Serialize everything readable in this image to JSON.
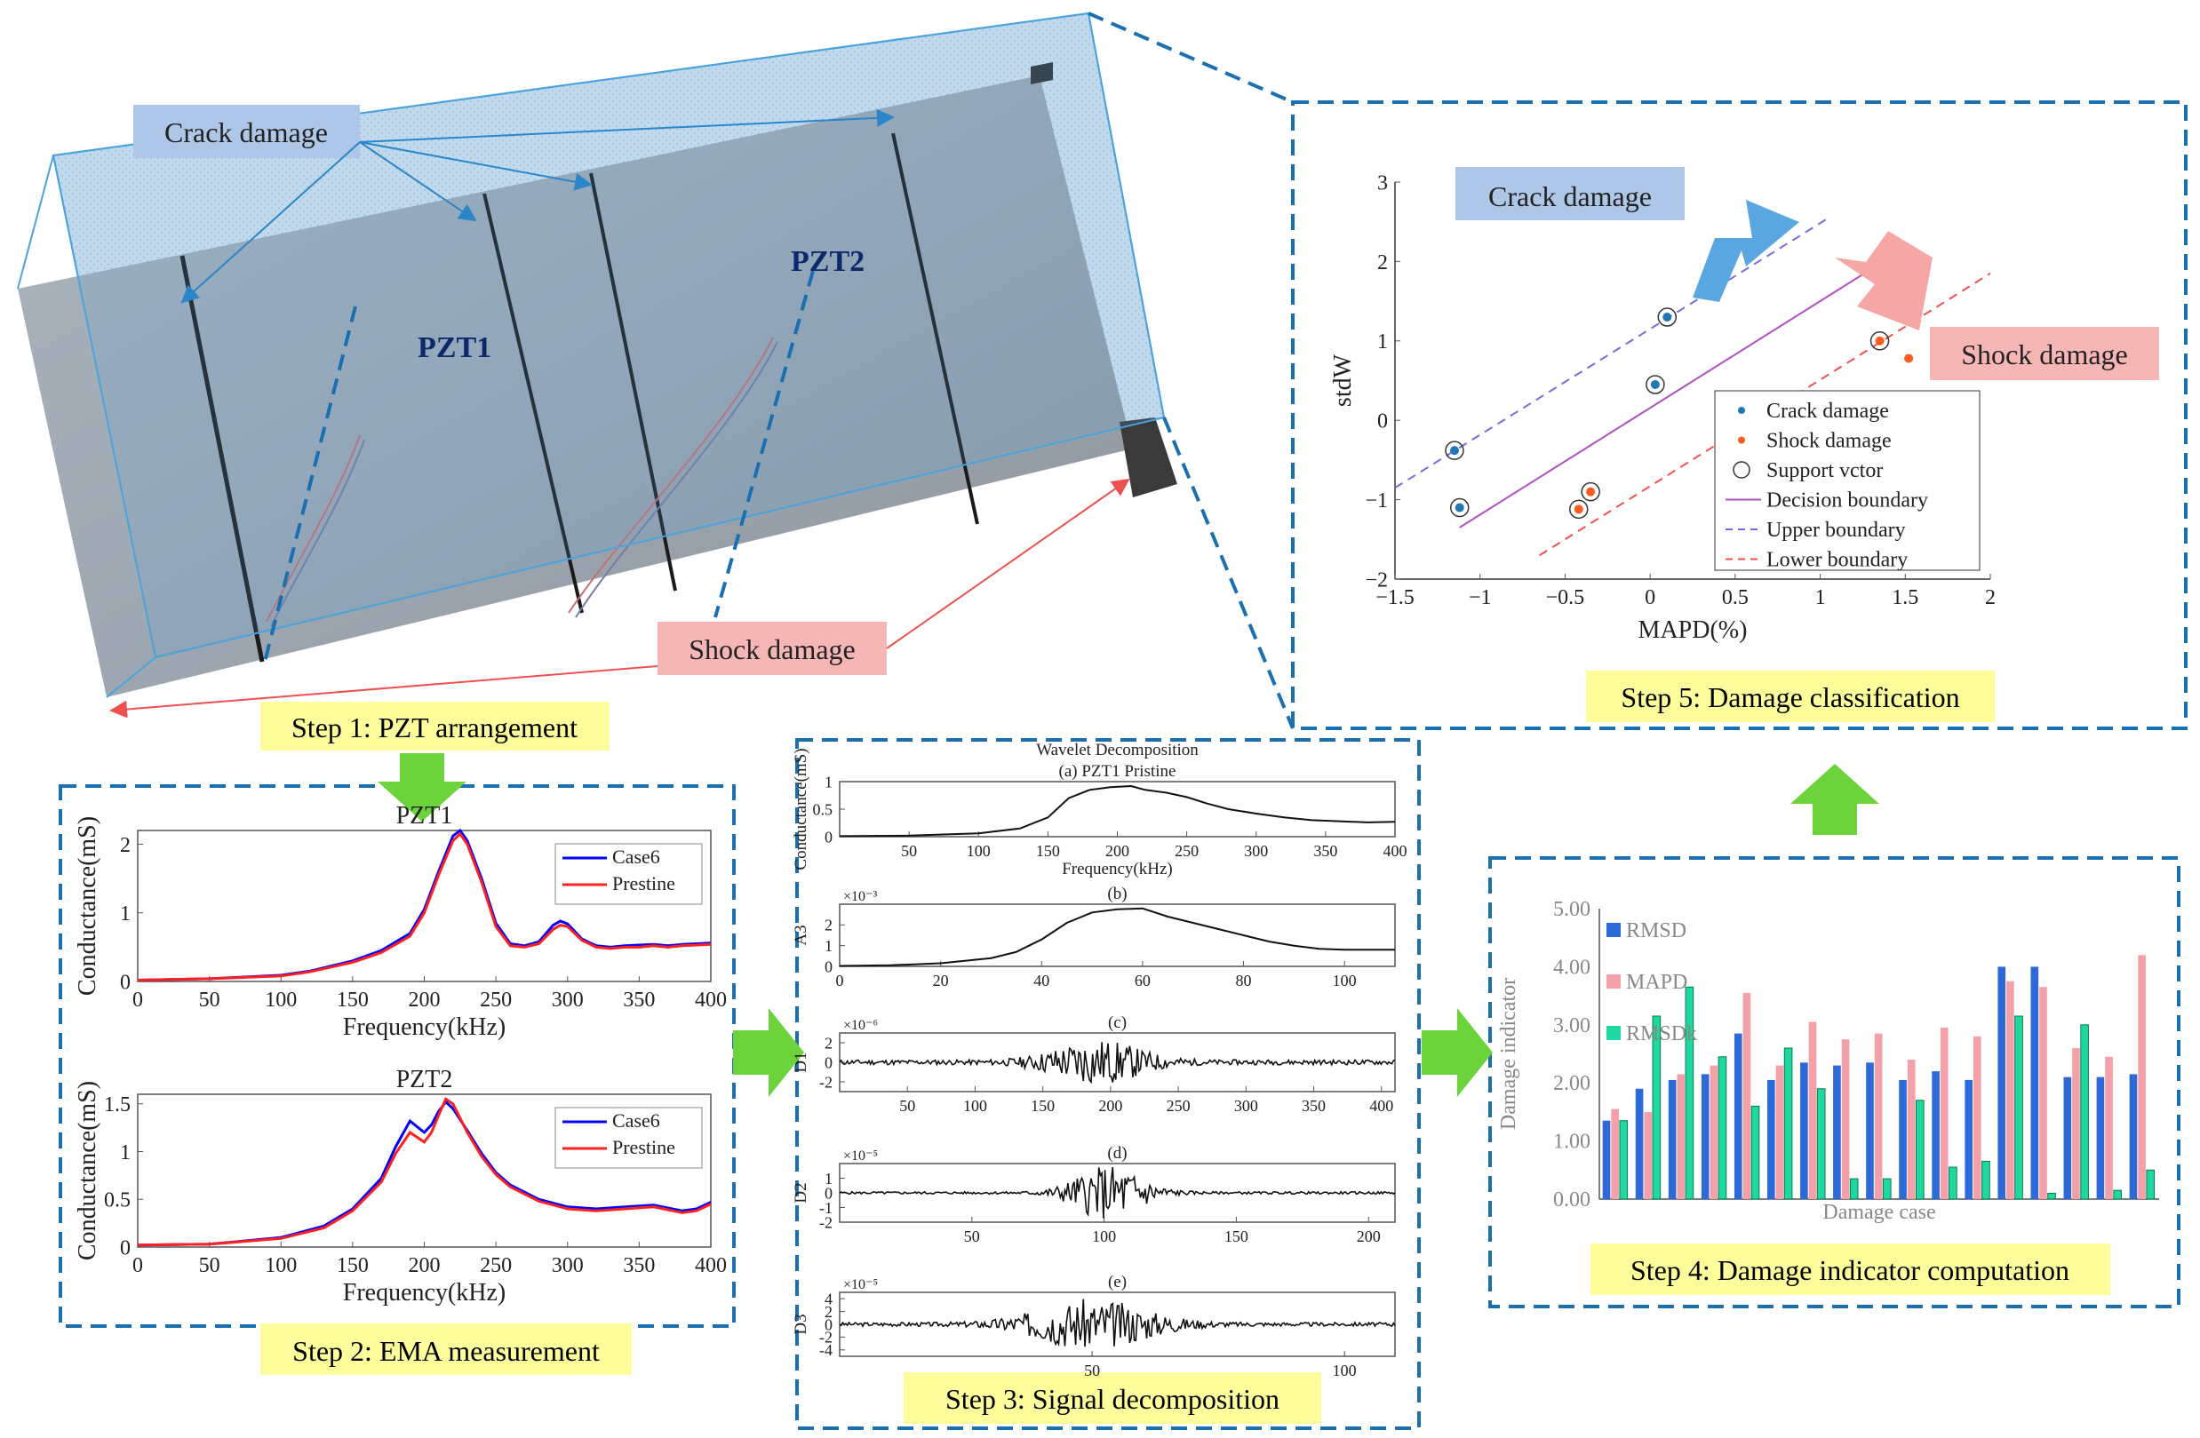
{
  "photo": {
    "crack_label": "Crack damage",
    "shock_label": "Shock damage",
    "pzt1_label": "PZT1",
    "pzt2_label": "PZT2"
  },
  "steps": {
    "step1": "Step 1: PZT arrangement",
    "step2": "Step 2: EMA measurement",
    "step3": "Step 3: Signal decomposition",
    "step4": "Step 4: Damage indicator computation",
    "step5": "Step 5: Damage classification"
  },
  "colors": {
    "case6": "#0000ff",
    "prestine": "#ff2020",
    "rmsd": "#2d6ad8",
    "mapd": "#f4a0a8",
    "rmsdk": "#1fd8a0",
    "crack": "#1f77b4",
    "shock": "#ff5a1f",
    "dash_box": "#1a6fb0",
    "step_bg": "#fdfd9c",
    "arrow": "#6cd43a"
  },
  "chart_data": [
    {
      "type": "line",
      "title": "PZT1",
      "xlabel": "Frequency(kHz)",
      "ylabel": "Conductance(mS)",
      "xlim": [
        0,
        400
      ],
      "ylim": [
        0,
        2.2
      ],
      "xticks": [
        "0",
        "50",
        "100",
        "150",
        "200",
        "250",
        "300",
        "350",
        "400"
      ],
      "yticks": [
        "0",
        "1",
        "2"
      ],
      "x": [
        0,
        50,
        100,
        120,
        150,
        170,
        190,
        200,
        210,
        220,
        225,
        230,
        240,
        250,
        260,
        270,
        280,
        290,
        295,
        300,
        310,
        320,
        330,
        340,
        350,
        360,
        370,
        380,
        390,
        400
      ],
      "series": [
        {
          "name": "Case6",
          "values": [
            0.02,
            0.04,
            0.09,
            0.15,
            0.3,
            0.45,
            0.7,
            1.05,
            1.6,
            2.12,
            2.2,
            2.05,
            1.5,
            0.85,
            0.55,
            0.52,
            0.58,
            0.82,
            0.88,
            0.84,
            0.62,
            0.52,
            0.5,
            0.52,
            0.53,
            0.54,
            0.52,
            0.54,
            0.55,
            0.56
          ]
        },
        {
          "name": "Prestine",
          "values": [
            0.02,
            0.04,
            0.08,
            0.14,
            0.28,
            0.42,
            0.66,
            1.0,
            1.55,
            2.05,
            2.15,
            2.0,
            1.45,
            0.8,
            0.52,
            0.5,
            0.55,
            0.76,
            0.82,
            0.8,
            0.6,
            0.5,
            0.48,
            0.5,
            0.5,
            0.52,
            0.5,
            0.52,
            0.53,
            0.54
          ]
        }
      ]
    },
    {
      "type": "line",
      "title": "PZT2",
      "xlabel": "Frequency(kHz)",
      "ylabel": "Conductance(mS)",
      "xlim": [
        0,
        400
      ],
      "ylim": [
        0,
        1.6
      ],
      "xticks": [
        "0",
        "50",
        "100",
        "150",
        "200",
        "250",
        "300",
        "350",
        "400"
      ],
      "yticks": [
        "0",
        "0.5",
        "1",
        "1.5"
      ],
      "x": [
        0,
        50,
        100,
        130,
        150,
        170,
        180,
        190,
        200,
        205,
        210,
        215,
        220,
        230,
        240,
        250,
        260,
        280,
        300,
        320,
        340,
        360,
        380,
        390,
        400
      ],
      "series": [
        {
          "name": "Case6",
          "values": [
            0.02,
            0.03,
            0.1,
            0.22,
            0.4,
            0.72,
            1.05,
            1.32,
            1.2,
            1.28,
            1.42,
            1.52,
            1.45,
            1.22,
            0.98,
            0.78,
            0.65,
            0.5,
            0.42,
            0.4,
            0.42,
            0.44,
            0.38,
            0.4,
            0.47
          ]
        },
        {
          "name": "Prestine",
          "values": [
            0.02,
            0.03,
            0.09,
            0.2,
            0.38,
            0.68,
            0.98,
            1.2,
            1.1,
            1.2,
            1.38,
            1.55,
            1.5,
            1.2,
            0.95,
            0.76,
            0.63,
            0.48,
            0.4,
            0.38,
            0.4,
            0.42,
            0.36,
            0.38,
            0.45
          ]
        }
      ]
    },
    {
      "type": "line",
      "title": "Wavelet Decomposition",
      "subtitle": "(a)  PZT1  Pristine",
      "xlabel": "Frequency(kHz)",
      "ylabel": "Conductance(mS)",
      "xlim": [
        0,
        400
      ],
      "ylim": [
        0,
        1
      ],
      "xticks": [
        "50",
        "100",
        "150",
        "200",
        "250",
        "300",
        "350",
        "400"
      ],
      "yticks": [
        "0",
        "0.5",
        "1"
      ],
      "x": [
        0,
        50,
        100,
        130,
        150,
        165,
        180,
        195,
        210,
        220,
        235,
        250,
        265,
        280,
        300,
        320,
        340,
        360,
        380,
        400
      ],
      "values": [
        0.01,
        0.02,
        0.06,
        0.15,
        0.35,
        0.7,
        0.85,
        0.9,
        0.92,
        0.85,
        0.8,
        0.72,
        0.6,
        0.5,
        0.42,
        0.35,
        0.3,
        0.28,
        0.26,
        0.27
      ]
    },
    {
      "type": "line",
      "subtitle": "(b)",
      "ylabel": "A3",
      "exponent": "×10⁻³",
      "xlim": [
        0,
        110
      ],
      "ylim": [
        0,
        3
      ],
      "xticks": [
        "0",
        "20",
        "40",
        "60",
        "80",
        "100"
      ],
      "yticks": [
        "0",
        "1",
        "2"
      ],
      "x": [
        0,
        10,
        20,
        30,
        35,
        40,
        45,
        50,
        55,
        60,
        65,
        70,
        75,
        80,
        85,
        90,
        95,
        100,
        110
      ],
      "values": [
        0.02,
        0.05,
        0.15,
        0.4,
        0.7,
        1.3,
        2.1,
        2.6,
        2.75,
        2.8,
        2.4,
        2.1,
        1.8,
        1.5,
        1.2,
        1.0,
        0.85,
        0.8,
        0.8
      ]
    },
    {
      "type": "line",
      "subtitle": "(c)",
      "ylabel": "D1",
      "exponent": "×10⁻⁶",
      "xlim": [
        0,
        410
      ],
      "ylim": [
        -3,
        3
      ],
      "xticks": [
        "50",
        "100",
        "150",
        "200",
        "250",
        "300",
        "350",
        "400"
      ],
      "yticks": [
        "-2",
        "0",
        "2"
      ],
      "noise": {
        "base": 0.25,
        "peak": 2.4,
        "center": 190,
        "width": 40,
        "seed": 11
      }
    },
    {
      "type": "line",
      "subtitle": "(d)",
      "ylabel": "D2",
      "exponent": "×10⁻⁵",
      "xlim": [
        0,
        210
      ],
      "ylim": [
        -2,
        2
      ],
      "xticks": [
        "50",
        "100",
        "150",
        "200"
      ],
      "yticks": [
        "-2",
        "-1",
        "0",
        "1"
      ],
      "noise": {
        "base": 0.08,
        "peak": 1.9,
        "center": 102,
        "width": 16,
        "seed": 5
      }
    },
    {
      "type": "line",
      "subtitle": "(e)",
      "ylabel": "D3",
      "exponent": "×10⁻⁵",
      "xlim": [
        0,
        110
      ],
      "ylim": [
        -5,
        5
      ],
      "xticks": [
        "50",
        "100"
      ],
      "yticks": [
        "-4",
        "-2",
        "0",
        "2",
        "4"
      ],
      "noise": {
        "base": 0.3,
        "peak": 4.0,
        "center": 50,
        "width": 14,
        "seed": 3
      }
    },
    {
      "type": "bar",
      "xlabel": "Damage case",
      "ylabel": "Damage indicator",
      "ylim": [
        0,
        5
      ],
      "yticks": [
        "0.00",
        "1.00",
        "2.00",
        "3.00",
        "4.00",
        "5.00"
      ],
      "series": [
        {
          "name": "RMSD",
          "values": [
            1.35,
            1.9,
            2.05,
            2.15,
            2.85,
            2.05,
            2.35,
            2.3,
            2.35,
            2.05,
            2.2,
            2.05,
            4.0,
            4.0,
            2.1,
            2.1,
            2.15
          ]
        },
        {
          "name": "MAPD",
          "values": [
            1.55,
            1.5,
            2.15,
            2.3,
            3.55,
            2.3,
            3.05,
            2.75,
            2.85,
            2.4,
            2.95,
            2.8,
            3.75,
            3.65,
            2.6,
            2.45,
            4.2
          ]
        },
        {
          "name": "RMSDk",
          "values": [
            1.35,
            3.15,
            3.65,
            2.45,
            1.6,
            2.6,
            1.9,
            0.35,
            0.35,
            1.7,
            0.55,
            0.65,
            3.15,
            0.1,
            3.0,
            0.15,
            0.5
          ]
        }
      ]
    },
    {
      "type": "scatter",
      "xlabel": "MAPD(%)",
      "ylabel": "stdW",
      "xlim": [
        -1.5,
        2
      ],
      "ylim": [
        -2,
        3
      ],
      "xticks": [
        "−1.5",
        "−1",
        "−0.5",
        "0",
        "0.5",
        "1",
        "1.5",
        "2"
      ],
      "yticks": [
        "−2",
        "−1",
        "0",
        "1",
        "2",
        "3"
      ],
      "crack_label": "Crack damage",
      "shock_label": "Shock damage",
      "series": [
        {
          "name": "Crack damage",
          "x": [
            -1.15,
            -1.12,
            0.1,
            0.03
          ],
          "y": [
            -0.38,
            -1.1,
            1.3,
            0.45
          ]
        },
        {
          "name": "Shock damage",
          "x": [
            1.35,
            1.52,
            -0.35,
            -0.42
          ],
          "y": [
            1.0,
            0.78,
            -0.9,
            -1.12
          ]
        }
      ],
      "support_vectors": {
        "x": [
          -1.15,
          -1.12,
          0.1,
          0.03,
          1.35,
          -0.35,
          -0.42
        ],
        "y": [
          -0.38,
          -1.1,
          1.3,
          0.45,
          1.0,
          -0.9,
          -1.12
        ]
      },
      "lines": {
        "decision": {
          "x": [
            -1.12,
            1.52
          ],
          "y": [
            -1.35,
            2.2
          ]
        },
        "upper": {
          "x": [
            -1.5,
            1.05
          ],
          "y": [
            -0.85,
            2.55
          ]
        },
        "lower": {
          "x": [
            -0.65,
            2.0
          ],
          "y": [
            -1.7,
            1.85
          ]
        }
      },
      "legend": [
        "Crack damage",
        "Shock damage",
        "Support vctor",
        "Decision boundary",
        "Upper boundary",
        "Lower boundary"
      ]
    }
  ]
}
